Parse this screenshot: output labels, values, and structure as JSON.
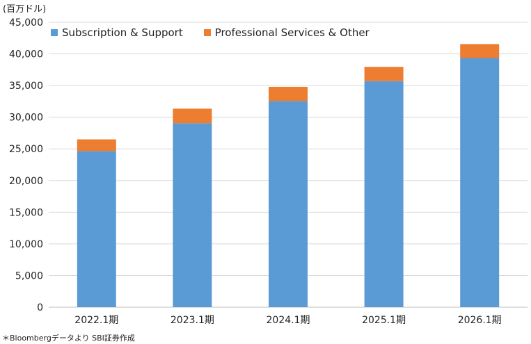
{
  "chart_data": {
    "type": "bar",
    "stacked": true,
    "unit_label": "(百万ドル)",
    "categories": [
      "2022.1期",
      "2023.1期",
      "2024.1期",
      "2025.1期",
      "2026.1期"
    ],
    "series": [
      {
        "name": "Subscription & Support",
        "color": "#5b9bd5",
        "values": [
          24650,
          29050,
          32550,
          35700,
          39350
        ]
      },
      {
        "name": "Professional Services & Other",
        "color": "#ed7d31",
        "values": [
          1850,
          2300,
          2250,
          2250,
          2200
        ]
      }
    ],
    "ylim": [
      0,
      45000
    ],
    "yticks": [
      "0",
      "5,000",
      "10,000",
      "15,000",
      "20,000",
      "25,000",
      "30,000",
      "35,000",
      "40,000",
      "45,000"
    ],
    "grid": true,
    "legend_position": "top-left",
    "source_note": "＊Bloombergデータより SBI証券作成"
  }
}
